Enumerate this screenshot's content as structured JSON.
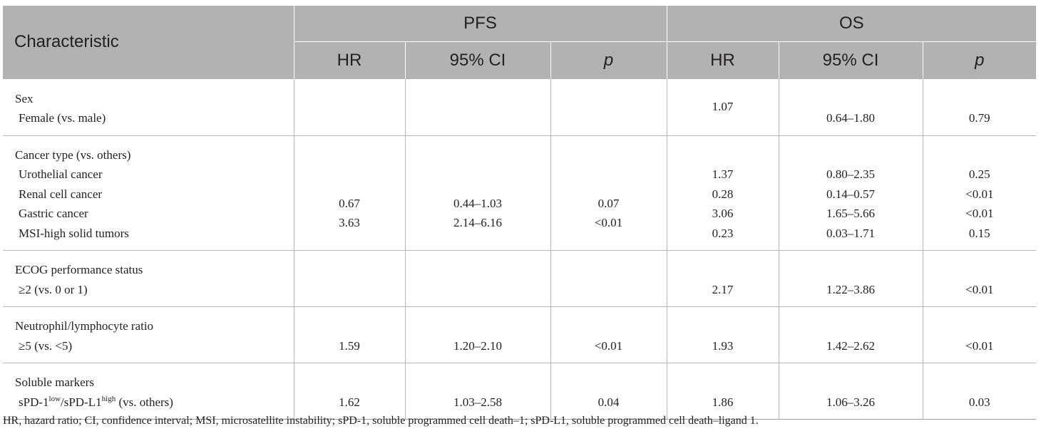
{
  "header": {
    "characteristic": "Characteristic",
    "pfs": "PFS",
    "os": "OS",
    "hr": "HR",
    "ci": "95% CI",
    "p": "p"
  },
  "rows": [
    {
      "group": "Sex",
      "items": [
        {
          "label": "Female (vs. male)",
          "pfs": {
            "hr": "",
            "ci": "",
            "p": ""
          },
          "os": {
            "hr": "1.07",
            "ci": "0.64–1.80",
            "p": "0.79"
          }
        }
      ]
    },
    {
      "group": "Cancer type (vs. others)",
      "items": [
        {
          "label": "Urothelial cancer",
          "pfs": {
            "hr": "",
            "ci": "",
            "p": ""
          },
          "os": {
            "hr": "1.37",
            "ci": "0.80–2.35",
            "p": "0.25"
          }
        },
        {
          "label": "Renal cell cancer",
          "pfs": {
            "hr": "0.67",
            "ci": "0.44–1.03",
            "p": "0.07"
          },
          "os": {
            "hr": "0.28",
            "ci": "0.14–0.57",
            "p": "<0.01"
          }
        },
        {
          "label": "Gastric cancer",
          "pfs": {
            "hr": "3.63",
            "ci": "2.14–6.16",
            "p": "<0.01"
          },
          "os": {
            "hr": "3.06",
            "ci": "1.65–5.66",
            "p": "<0.01"
          }
        },
        {
          "label": "MSI-high solid tumors",
          "pfs": {
            "hr": "",
            "ci": "",
            "p": ""
          },
          "os": {
            "hr": "0.23",
            "ci": "0.03–1.71",
            "p": "0.15"
          }
        }
      ]
    },
    {
      "group": "ECOG performance status",
      "items": [
        {
          "label": "≥2 (vs. 0 or 1)",
          "pfs": {
            "hr": "",
            "ci": "",
            "p": ""
          },
          "os": {
            "hr": "2.17",
            "ci": "1.22–3.86",
            "p": "<0.01"
          }
        }
      ]
    },
    {
      "group": "Neutrophil/lymphocyte ratio",
      "items": [
        {
          "label": "≥5 (vs. <5)",
          "pfs": {
            "hr": "1.59",
            "ci": "1.20–2.10",
            "p": "<0.01"
          },
          "os": {
            "hr": "1.93",
            "ci": "1.42–2.62",
            "p": "<0.01"
          }
        }
      ]
    },
    {
      "group": "Soluble markers",
      "items": [
        {
          "label_parts": {
            "a": "sPD-1",
            "a_sup": "low",
            "b": "/sPD-L1",
            "b_sup": "high",
            "c": " (vs. others)"
          },
          "pfs": {
            "hr": "1.62",
            "ci": "1.03–2.58",
            "p": "0.04"
          },
          "os": {
            "hr": "1.86",
            "ci": "1.06–3.26",
            "p": "0.03"
          }
        }
      ]
    }
  ],
  "footnote": "HR, hazard ratio; CI, confidence interval; MSI, microsatellite instability; sPD-1, soluble programmed cell death–1; sPD-L1, soluble programmed cell death–ligand 1."
}
